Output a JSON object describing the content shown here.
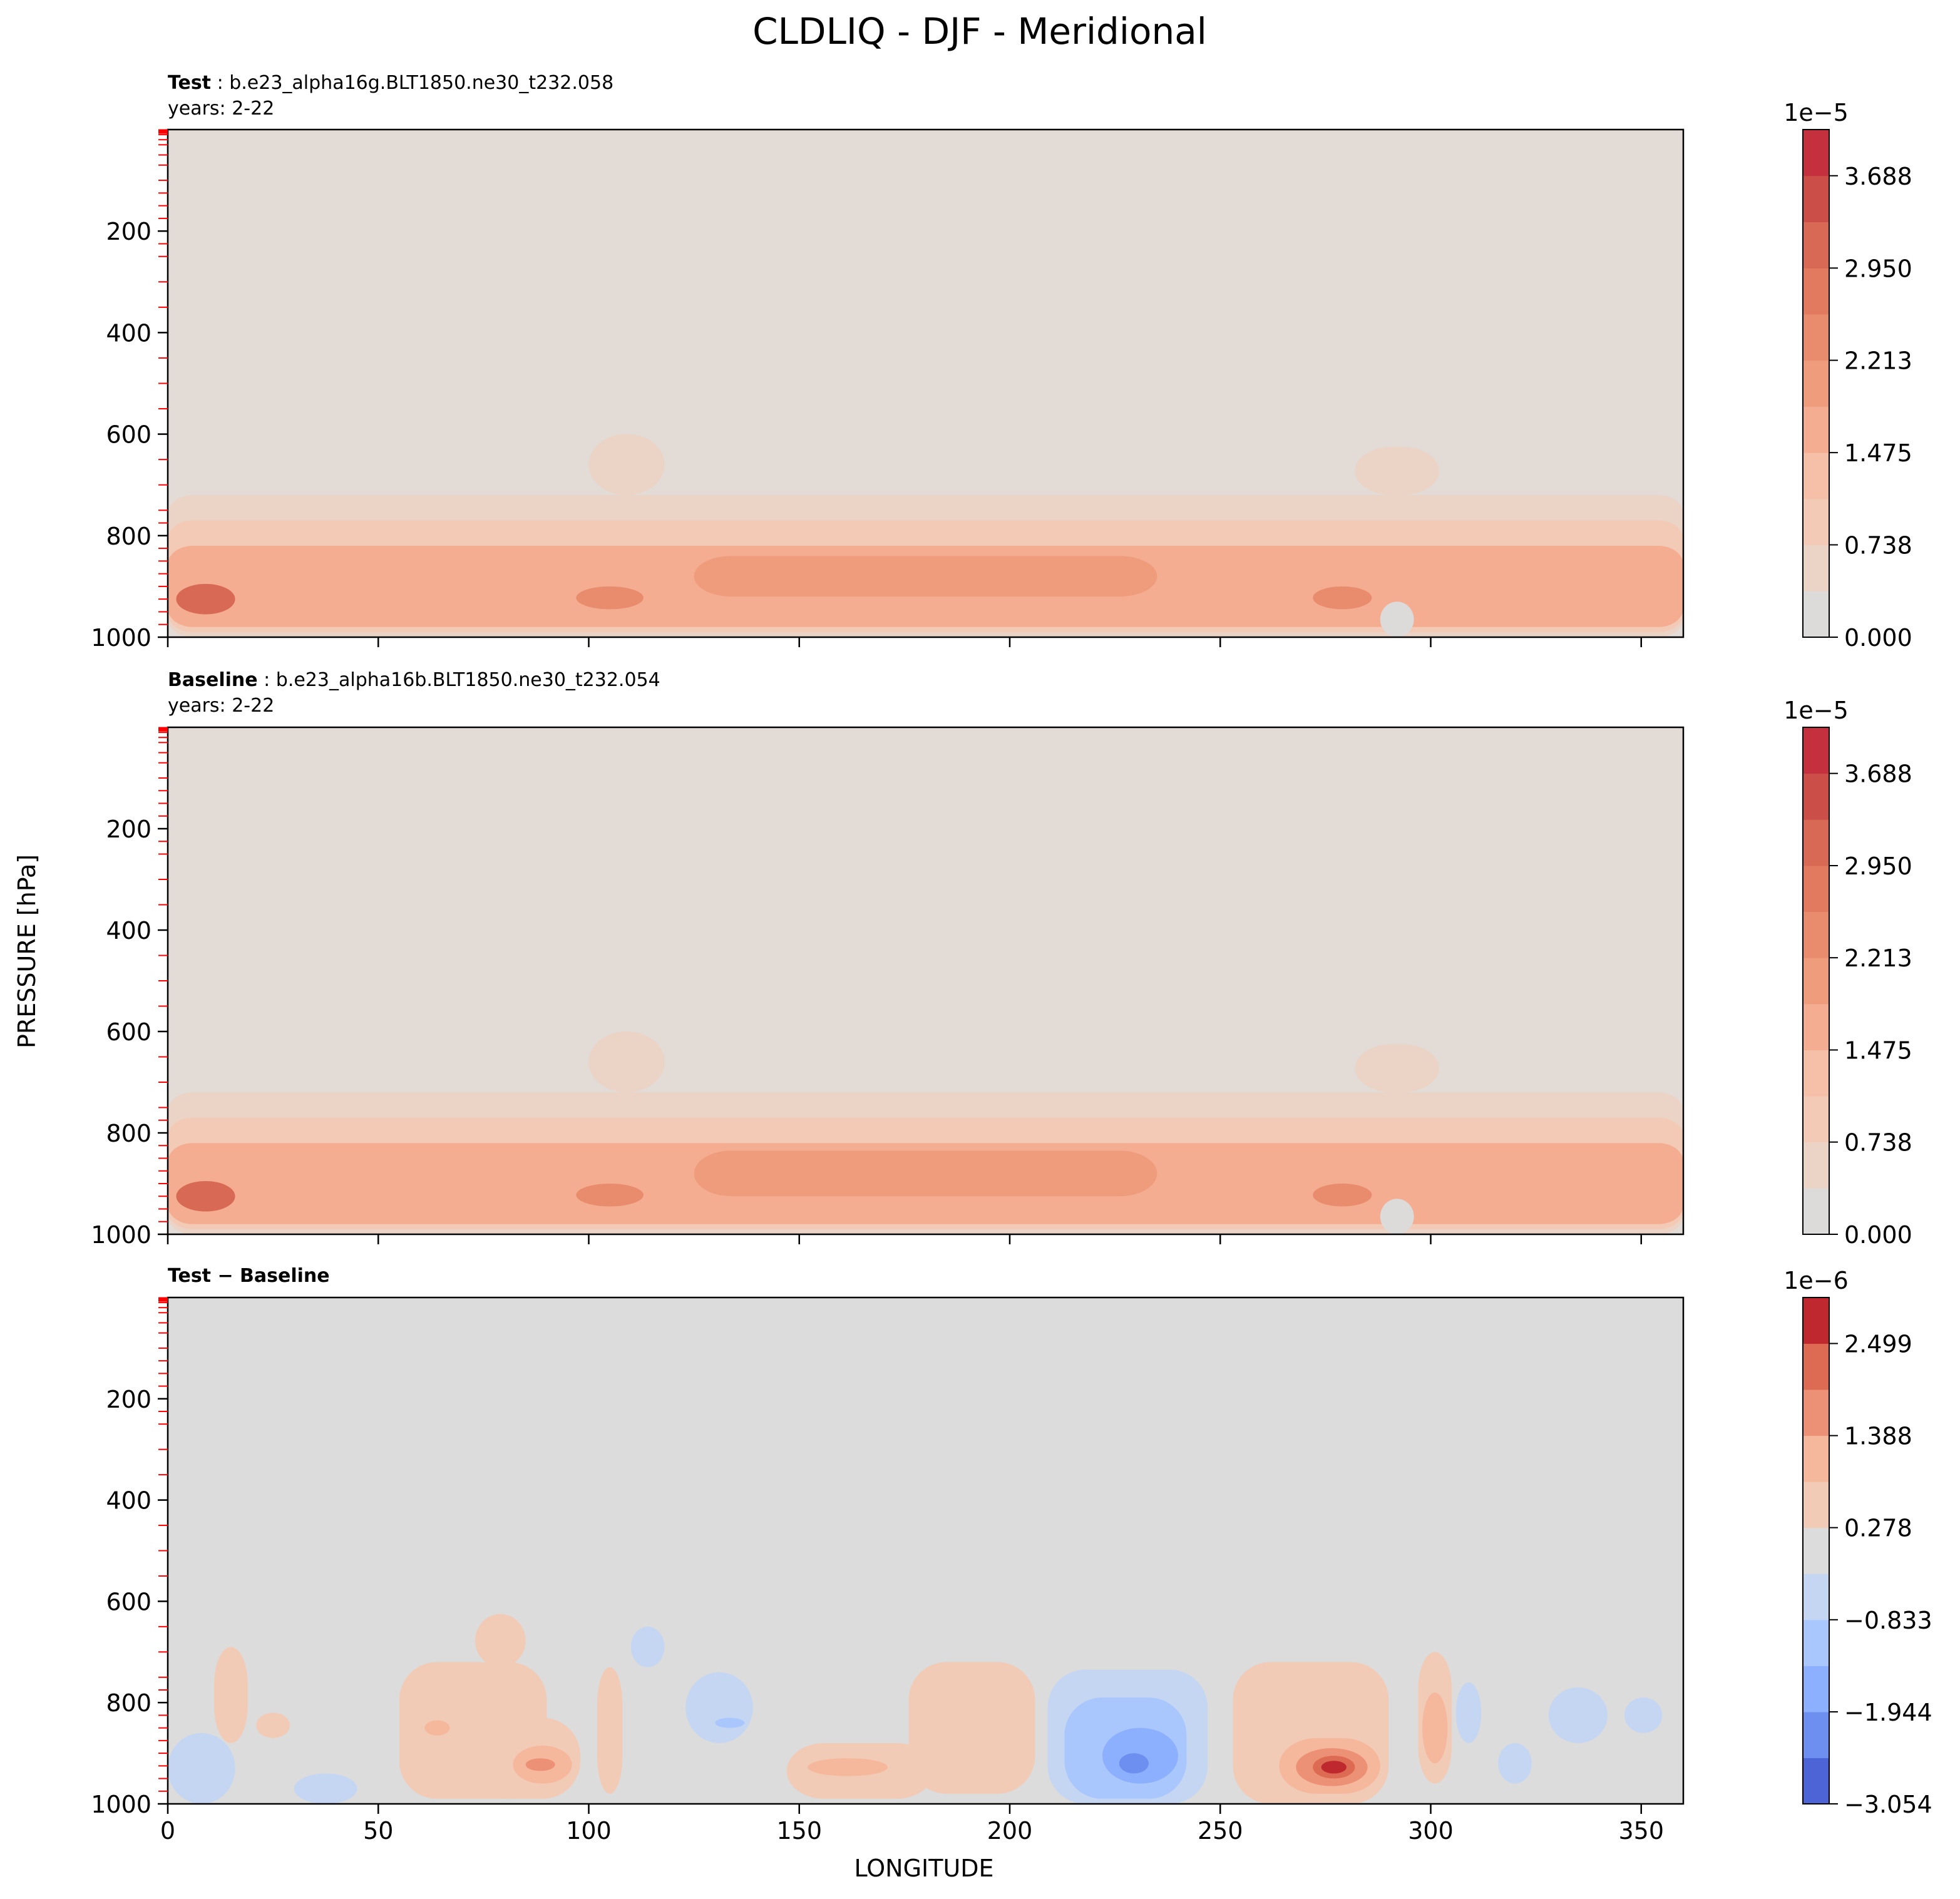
{
  "figure": {
    "title": "CLDLIQ - DJF - Meridional",
    "ylabel": "PRESSURE [hPa]",
    "xlabel": "LONGITUDE"
  },
  "colors": {
    "background_test": "#e2dbd6",
    "background_diff": "#dcdcdc",
    "axis": "#000000",
    "minor_tick": "#ff0000"
  },
  "chart_data": [
    {
      "type": "contourf",
      "panel": "test",
      "title_bold": "Test",
      "title_sep": ":",
      "title_rest": "b.e23_alpha16g.BLT1850.ne30_t232.058",
      "subtitle": "years: 2-22",
      "xlim": [
        0,
        360
      ],
      "ylim": [
        1000,
        0
      ],
      "xticks": [
        0,
        50,
        100,
        150,
        200,
        250,
        300,
        350
      ],
      "xtick_labels": [],
      "yticks": [
        200,
        400,
        600,
        800,
        1000
      ],
      "ytick_labels": [
        "200",
        "400",
        "600",
        "800",
        "1000"
      ],
      "minor_yticks": [
        2,
        3,
        5,
        7,
        10,
        20,
        30,
        50,
        70,
        100,
        125,
        150,
        175,
        225,
        250,
        300,
        350,
        450,
        500,
        550,
        650,
        700,
        750,
        775,
        825,
        850,
        875,
        900,
        925,
        950,
        975
      ],
      "colorbar": {
        "exponent": "1e−5",
        "levels": [
          0.0,
          0.369,
          0.738,
          1.106,
          1.475,
          1.844,
          2.213,
          2.582,
          2.95,
          3.319,
          3.688,
          4.057
        ],
        "colors": [
          "#dcdbda",
          "#ebd3c6",
          "#f2cab5",
          "#f5c0a7",
          "#f4ad91",
          "#ef9c7d",
          "#e98c6e",
          "#e27a60",
          "#d86a55",
          "#cb4f48",
          "#c4303e"
        ],
        "tick_values": [
          0.0,
          0.738,
          1.475,
          2.213,
          2.95,
          3.688
        ],
        "tick_labels": [
          "0.000",
          "0.738",
          "1.475",
          "2.213",
          "2.950",
          "3.688"
        ]
      },
      "features": [
        {
          "label": "low-level cloud layer",
          "level": 1,
          "lon": [
            0,
            360
          ],
          "pressure": [
            720,
            1000
          ]
        },
        {
          "label": "lower cloud band",
          "level": 2,
          "lon": [
            0,
            360
          ],
          "pressure": [
            770,
            990
          ]
        },
        {
          "label": "cloud maximum band",
          "level": 4,
          "lon": [
            0,
            360
          ],
          "pressure": [
            820,
            980
          ]
        },
        {
          "label": "plume near 105E",
          "level": 1,
          "lon": [
            100,
            118
          ],
          "pressure": [
            600,
            720
          ]
        },
        {
          "label": "plume near 295E",
          "level": 1,
          "lon": [
            282,
            302
          ],
          "pressure": [
            625,
            720
          ]
        },
        {
          "label": "core 10E",
          "level": 8,
          "lon": [
            2,
            16
          ],
          "pressure": [
            895,
            955
          ]
        },
        {
          "label": "core 105E",
          "level": 6,
          "lon": [
            97,
            113
          ],
          "pressure": [
            900,
            945
          ]
        },
        {
          "label": "core 280E",
          "level": 6,
          "lon": [
            272,
            286
          ],
          "pressure": [
            900,
            945
          ]
        },
        {
          "label": "band 125-235E",
          "level": 5,
          "lon": [
            125,
            235
          ],
          "pressure": [
            840,
            920
          ]
        },
        {
          "label": "gap near 290E",
          "level": 0,
          "lon": [
            288,
            296
          ],
          "pressure": [
            930,
            1000
          ]
        }
      ]
    },
    {
      "type": "contourf",
      "panel": "baseline",
      "title_bold": "Baseline",
      "title_sep": ":",
      "title_rest": "b.e23_alpha16b.BLT1850.ne30_t232.054",
      "subtitle": "years: 2-22",
      "xlim": [
        0,
        360
      ],
      "ylim": [
        1000,
        0
      ],
      "xticks": [
        0,
        50,
        100,
        150,
        200,
        250,
        300,
        350
      ],
      "xtick_labels": [],
      "yticks": [
        200,
        400,
        600,
        800,
        1000
      ],
      "ytick_labels": [
        "200",
        "400",
        "600",
        "800",
        "1000"
      ],
      "minor_yticks": [
        2,
        3,
        5,
        7,
        10,
        20,
        30,
        50,
        70,
        100,
        125,
        150,
        175,
        225,
        250,
        300,
        350,
        450,
        500,
        550,
        650,
        700,
        750,
        775,
        825,
        850,
        875,
        900,
        925,
        950,
        975
      ],
      "colorbar": {
        "exponent": "1e−5",
        "levels": [
          0.0,
          0.369,
          0.738,
          1.106,
          1.475,
          1.844,
          2.213,
          2.582,
          2.95,
          3.319,
          3.688,
          4.057
        ],
        "colors": [
          "#dcdbda",
          "#ebd3c6",
          "#f2cab5",
          "#f5c0a7",
          "#f4ad91",
          "#ef9c7d",
          "#e98c6e",
          "#e27a60",
          "#d86a55",
          "#cb4f48",
          "#c4303e"
        ],
        "tick_values": [
          0.0,
          0.738,
          1.475,
          2.213,
          2.95,
          3.688
        ],
        "tick_labels": [
          "0.000",
          "0.738",
          "1.475",
          "2.213",
          "2.950",
          "3.688"
        ]
      },
      "features": [
        {
          "label": "low-level cloud layer",
          "level": 1,
          "lon": [
            0,
            360
          ],
          "pressure": [
            720,
            1000
          ]
        },
        {
          "label": "lower cloud band",
          "level": 2,
          "lon": [
            0,
            360
          ],
          "pressure": [
            770,
            990
          ]
        },
        {
          "label": "cloud maximum band",
          "level": 4,
          "lon": [
            0,
            360
          ],
          "pressure": [
            820,
            980
          ]
        },
        {
          "label": "plume near 105E",
          "level": 1,
          "lon": [
            100,
            118
          ],
          "pressure": [
            600,
            720
          ]
        },
        {
          "label": "plume near 295E",
          "level": 1,
          "lon": [
            282,
            302
          ],
          "pressure": [
            625,
            720
          ]
        },
        {
          "label": "core 10E",
          "level": 8,
          "lon": [
            2,
            16
          ],
          "pressure": [
            895,
            955
          ]
        },
        {
          "label": "core 105E",
          "level": 6,
          "lon": [
            97,
            113
          ],
          "pressure": [
            900,
            945
          ]
        },
        {
          "label": "core 280E",
          "level": 6,
          "lon": [
            272,
            286
          ],
          "pressure": [
            900,
            945
          ]
        },
        {
          "label": "band 125-235E",
          "level": 5,
          "lon": [
            125,
            235
          ],
          "pressure": [
            835,
            925
          ]
        },
        {
          "label": "gap near 290E",
          "level": 0,
          "lon": [
            288,
            296
          ],
          "pressure": [
            930,
            1000
          ]
        }
      ]
    },
    {
      "type": "contourf",
      "panel": "difference",
      "title_bold": "Test − Baseline",
      "title_sep": "",
      "title_rest": "",
      "subtitle": "",
      "xlim": [
        0,
        360
      ],
      "ylim": [
        1000,
        0
      ],
      "xticks": [
        0,
        50,
        100,
        150,
        200,
        250,
        300,
        350
      ],
      "xtick_labels": [
        "0",
        "50",
        "100",
        "150",
        "200",
        "250",
        "300",
        "350"
      ],
      "yticks": [
        200,
        400,
        600,
        800,
        1000
      ],
      "ytick_labels": [
        "200",
        "400",
        "600",
        "800",
        "1000"
      ],
      "minor_yticks": [
        2,
        3,
        5,
        7,
        10,
        20,
        30,
        50,
        70,
        100,
        125,
        150,
        175,
        225,
        250,
        300,
        350,
        450,
        500,
        550,
        650,
        700,
        750,
        775,
        825,
        850,
        875,
        900,
        925,
        950,
        975
      ],
      "colorbar": {
        "exponent": "1e−6",
        "levels": [
          -3.054,
          -2.499,
          -1.944,
          -1.388,
          -0.833,
          -0.278,
          0.278,
          0.833,
          1.388,
          1.944,
          2.499,
          3.054
        ],
        "colors": [
          "#4c64d6",
          "#6c8ff0",
          "#8db0fe",
          "#aac7fd",
          "#c5d6f2",
          "#dcdcdc",
          "#f2cbb7",
          "#f5b89d",
          "#ec9175",
          "#dd6a53",
          "#c0282f"
        ],
        "tick_values": [
          -3.054,
          -1.944,
          -0.833,
          0.278,
          1.388,
          2.499
        ],
        "tick_labels": [
          "−3.054",
          "−1.944",
          "−0.833",
          "0.278",
          "1.388",
          "2.499"
        ]
      },
      "features": [
        {
          "label": "positive 15E",
          "level": 6,
          "lon": [
            11,
            19
          ],
          "pressure": [
            690,
            880
          ]
        },
        {
          "label": "positive 25E",
          "level": 6,
          "lon": [
            21,
            29
          ],
          "pressure": [
            820,
            870
          ]
        },
        {
          "label": "positive 63-90E",
          "level": 6,
          "lon": [
            55,
            90
          ],
          "pressure": [
            720,
            990
          ]
        },
        {
          "label": "positive 78E upper",
          "level": 6,
          "lon": [
            73,
            85
          ],
          "pressure": [
            625,
            730
          ]
        },
        {
          "label": "positive 80-97E",
          "level": 6,
          "lon": [
            72,
            98
          ],
          "pressure": [
            830,
            990
          ]
        },
        {
          "label": "positive core 88E",
          "level": 7,
          "lon": [
            82,
            96
          ],
          "pressure": [
            885,
            960
          ]
        },
        {
          "label": "positive core 88E inner",
          "level": 8,
          "lon": [
            85,
            92
          ],
          "pressure": [
            910,
            935
          ]
        },
        {
          "label": "positive 64E",
          "level": 7,
          "lon": [
            61,
            67
          ],
          "pressure": [
            835,
            865
          ]
        },
        {
          "label": "positive 105E",
          "level": 6,
          "lon": [
            102,
            108
          ],
          "pressure": [
            730,
            980
          ]
        },
        {
          "label": "negative 113E",
          "level": 4,
          "lon": [
            110,
            118
          ],
          "pressure": [
            650,
            730
          ]
        },
        {
          "label": "negative 131E",
          "level": 4,
          "lon": [
            123,
            139
          ],
          "pressure": [
            740,
            880
          ]
        },
        {
          "label": "negative core 133E",
          "level": 3,
          "lon": [
            130,
            137
          ],
          "pressure": [
            830,
            850
          ]
        },
        {
          "label": "positive 150-178E",
          "level": 6,
          "lon": [
            147,
            182
          ],
          "pressure": [
            880,
            990
          ]
        },
        {
          "label": "positive 182-206E",
          "level": 6,
          "lon": [
            176,
            206
          ],
          "pressure": [
            720,
            980
          ]
        },
        {
          "label": "positive core 160E",
          "level": 7,
          "lon": [
            152,
            171
          ],
          "pressure": [
            910,
            945
          ]
        },
        {
          "label": "negative 210-245E",
          "level": 4,
          "lon": [
            209,
            247
          ],
          "pressure": [
            735,
            1000
          ]
        },
        {
          "label": "negative 213-242E",
          "level": 3,
          "lon": [
            213,
            242
          ],
          "pressure": [
            790,
            990
          ]
        },
        {
          "label": "negative core 228E",
          "level": 2,
          "lon": [
            222,
            240
          ],
          "pressure": [
            850,
            960
          ]
        },
        {
          "label": "negative core 228E inner",
          "level": 1,
          "lon": [
            226,
            233
          ],
          "pressure": [
            900,
            940
          ]
        },
        {
          "label": "positive 255-290E",
          "level": 6,
          "lon": [
            253,
            290
          ],
          "pressure": [
            720,
            1000
          ]
        },
        {
          "label": "positive core 277E",
          "level": 7,
          "lon": [
            264,
            288
          ],
          "pressure": [
            870,
            980
          ]
        },
        {
          "label": "positive core 277E mid",
          "level": 8,
          "lon": [
            268,
            285
          ],
          "pressure": [
            890,
            965
          ]
        },
        {
          "label": "positive core 277E inner",
          "level": 9,
          "lon": [
            272,
            282
          ],
          "pressure": [
            905,
            950
          ]
        },
        {
          "label": "positive core 277E peak",
          "level": 10,
          "lon": [
            274,
            280
          ],
          "pressure": [
            915,
            940
          ]
        },
        {
          "label": "positive 300E",
          "level": 6,
          "lon": [
            297,
            305
          ],
          "pressure": [
            700,
            960
          ]
        },
        {
          "label": "positive core 301E",
          "level": 7,
          "lon": [
            298,
            304
          ],
          "pressure": [
            780,
            920
          ]
        },
        {
          "label": "negative 309E",
          "level": 4,
          "lon": [
            306,
            312
          ],
          "pressure": [
            760,
            880
          ]
        },
        {
          "label": "negative 320E",
          "level": 4,
          "lon": [
            316,
            324
          ],
          "pressure": [
            880,
            960
          ]
        },
        {
          "label": "negative 335E",
          "level": 4,
          "lon": [
            328,
            342
          ],
          "pressure": [
            770,
            880
          ]
        },
        {
          "label": "negative 350E",
          "level": 4,
          "lon": [
            346,
            355
          ],
          "pressure": [
            790,
            860
          ]
        },
        {
          "label": "negative 5-15E near surface",
          "level": 4,
          "lon": [
            0,
            16
          ],
          "pressure": [
            860,
            1000
          ]
        },
        {
          "label": "negative 35-45E near surface",
          "level": 4,
          "lon": [
            30,
            45
          ],
          "pressure": [
            940,
            1000
          ]
        }
      ]
    }
  ]
}
